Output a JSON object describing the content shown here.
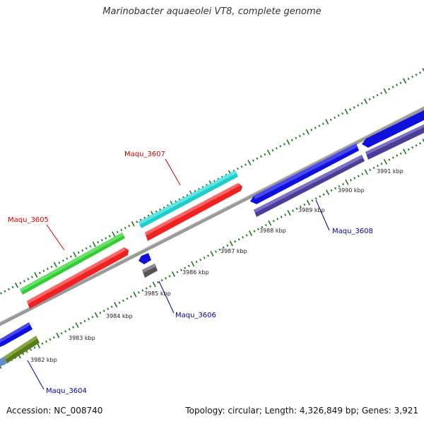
{
  "header": {
    "title": "Marinobacter aquaeolei VT8, complete genome"
  },
  "footer": {
    "accession": "Accession: NC_008740",
    "summary": "Topology: circular; Length: 4,326,849 bp; Genes: 3,921"
  },
  "scale_ticks": [
    "3982 kbp",
    "3983 kbp",
    "3984 kbp",
    "3985 kbp",
    "3986 kbp",
    "3987 kbp",
    "3988 kbp",
    "3989 kbp",
    "3990 kbp",
    "3991 kbp"
  ],
  "gene_labels": [
    {
      "name": "Maqu_3605",
      "strand": "forward"
    },
    {
      "name": "Maqu_3607",
      "strand": "forward"
    },
    {
      "name": "Maqu_3606",
      "strand": "reverse"
    },
    {
      "name": "Maqu_3608",
      "strand": "reverse"
    },
    {
      "name": "Maqu_3604",
      "strand": "reverse"
    }
  ],
  "colors": {
    "label_forward": "#cc0000",
    "label_reverse": "#0000aa",
    "tick": "#1a7a1a",
    "backbone": "#8a8a8a"
  }
}
